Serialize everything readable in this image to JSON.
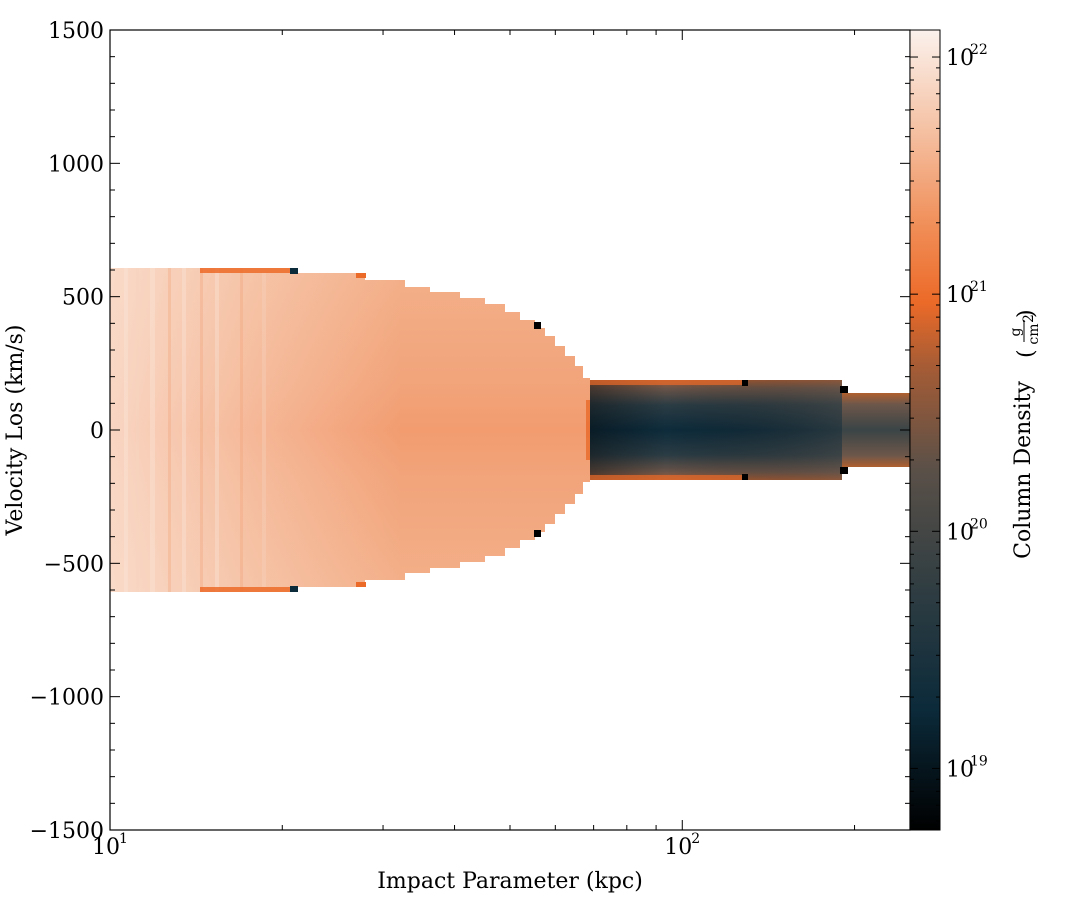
{
  "chart_data": {
    "type": "heatmap",
    "xlabel": "Impact Parameter  (kpc)",
    "ylabel": "Velocity Los  (km/s)",
    "x_scale": "log",
    "xlim": [
      10,
      250
    ],
    "ylim": [
      -1500,
      1500
    ],
    "x_ticks": [
      {
        "value": 10,
        "base": "10",
        "exp": "1"
      },
      {
        "value": 100,
        "base": "10",
        "exp": "2"
      }
    ],
    "y_ticks": [
      {
        "value": 1500,
        "label": "1500"
      },
      {
        "value": 1000,
        "label": "1000"
      },
      {
        "value": 500,
        "label": "500"
      },
      {
        "value": 0,
        "label": "0"
      },
      {
        "value": -500,
        "label": "−500"
      },
      {
        "value": -1000,
        "label": "−1000"
      },
      {
        "value": -1500,
        "label": "−1500"
      }
    ],
    "colorbar": {
      "label_text": "Column Density",
      "unit_num": "g",
      "unit_den_base": "cm",
      "unit_den_exp": "2",
      "scale": "log",
      "range": [
        5.5e+18,
        1.3e+22
      ],
      "ticks": [
        {
          "value": 1e+19,
          "base": "10",
          "exp": "19"
        },
        {
          "value": 1e+20,
          "base": "10",
          "exp": "20"
        },
        {
          "value": 1e+21,
          "base": "10",
          "exp": "21"
        },
        {
          "value": 1e+22,
          "base": "10",
          "exp": "22"
        }
      ],
      "colors": [
        "#000000",
        "#0b2a3a",
        "#3d4a4a",
        "#86593c",
        "#e8692a",
        "#f19060",
        "#f5c4a8",
        "#faefe9"
      ]
    },
    "regions": [
      {
        "name": "inner",
        "x_range": [
          10,
          70
        ],
        "v_max_at_x": [
          [
            10,
            610
          ],
          [
            21,
            590
          ],
          [
            28,
            575
          ],
          [
            35,
            540
          ],
          [
            45,
            480
          ],
          [
            55,
            400
          ],
          [
            62,
            330
          ],
          [
            66,
            280
          ],
          [
            70,
            180
          ]
        ],
        "column_density": "2e21 - 1e22"
      },
      {
        "name": "outer-near",
        "x_range": [
          70,
          185
        ],
        "v_half_width": 185,
        "column_density_edge": "3e20",
        "column_density_center": "1e19"
      },
      {
        "name": "outer-far",
        "x_range": [
          185,
          250
        ],
        "v_half_width": 140,
        "column_density_center": "3e19 - 1e20"
      }
    ]
  }
}
